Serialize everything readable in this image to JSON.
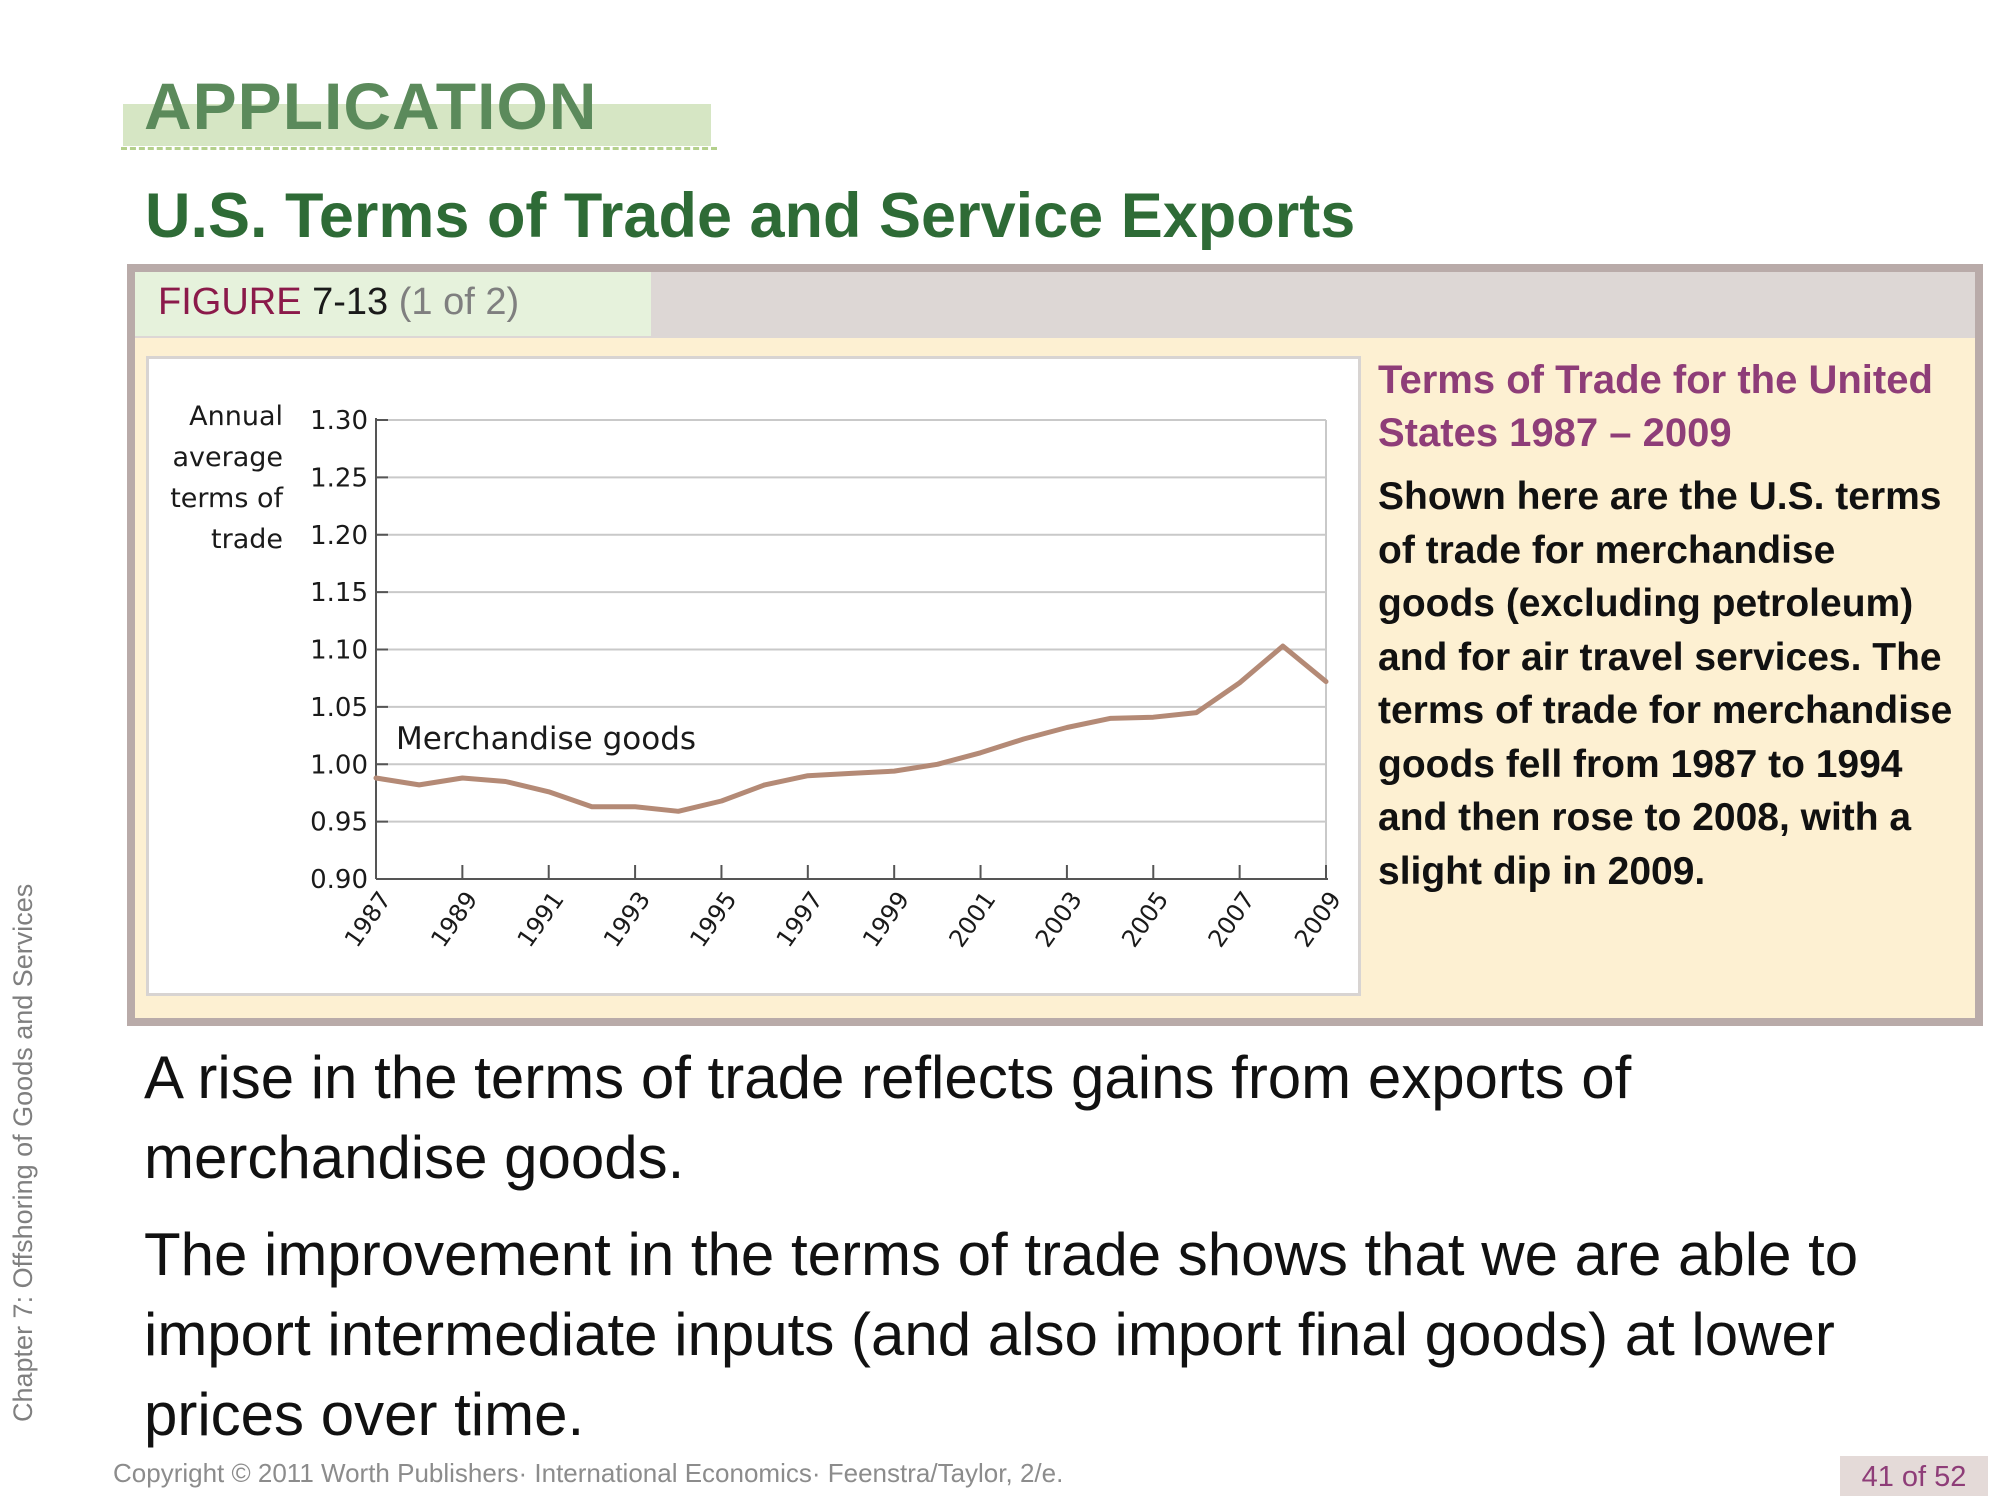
{
  "sidebar": {
    "chapter_label": "Chapter 7: Offshoring of Goods and Services"
  },
  "header": {
    "section_label": "APPLICATION",
    "title": "U.S. Terms of Trade and Service Exports"
  },
  "figure": {
    "label_word": "FIGURE",
    "label_number": "7-13",
    "label_part": "(1 of 2)",
    "caption_title": "Terms of Trade for the United States 1987 – 2009",
    "caption_text": "Shown here are the U.S. terms of trade for merchandise goods (excluding petroleum) and for air travel services. The terms of trade for merchandise goods fell from 1987 to 1994 and then rose to 2008, with a slight dip in 2009."
  },
  "chart_data": {
    "type": "line",
    "ylabel": "Annual average terms of trade",
    "xlabel": "",
    "title": "",
    "ylim": [
      0.9,
      1.3
    ],
    "yticks": [
      0.9,
      0.95,
      1.0,
      1.05,
      1.1,
      1.15,
      1.2,
      1.25,
      1.3
    ],
    "ytick_labels": [
      "0.90",
      "0.95",
      "1.00",
      "1.05",
      "1.10",
      "1.15",
      "1.20",
      "1.25",
      "1.30"
    ],
    "xlim": [
      1987,
      2009
    ],
    "xticks": [
      "1987",
      "1989",
      "1991",
      "1993",
      "1995",
      "1997",
      "1999",
      "2001",
      "2003",
      "2005",
      "2007",
      "2009"
    ],
    "grid": true,
    "line_color": "#b48a76",
    "series": [
      {
        "name": "Merchandise goods",
        "x": [
          1987,
          1988,
          1989,
          1990,
          1991,
          1992,
          1993,
          1994,
          1995,
          1996,
          1997,
          1998,
          1999,
          2000,
          2001,
          2002,
          2003,
          2004,
          2005,
          2006,
          2007,
          2008,
          2009
        ],
        "values": [
          0.988,
          0.982,
          0.988,
          0.985,
          0.976,
          0.963,
          0.963,
          0.959,
          0.968,
          0.982,
          0.99,
          0.992,
          0.994,
          1.0,
          1.01,
          1.022,
          1.032,
          1.04,
          1.041,
          1.045,
          1.071,
          1.103,
          1.072
        ]
      }
    ]
  },
  "bullets": [
    "A rise in the terms of trade reflects gains from exports of merchandise goods.",
    "The improvement in the terms of trade shows that we are able to import intermediate inputs (and also import final goods) at lower prices over time."
  ],
  "footer": {
    "copyright": "Copyright © 2011 Worth Publishers· International Economics· Feenstra/Taylor, 2/e.",
    "page": "41 of 52"
  }
}
